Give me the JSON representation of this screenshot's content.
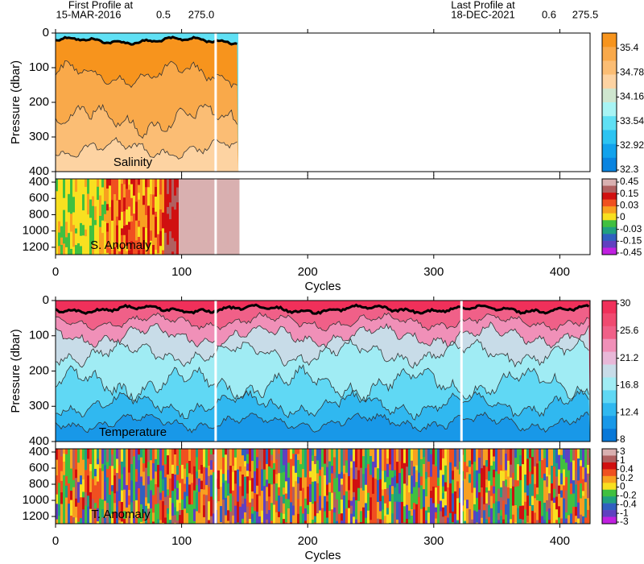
{
  "header": {
    "first_label": "First Profile at",
    "first_date": "15-MAR-2016",
    "first_lat": "0.5",
    "first_lon": "275.0",
    "last_label": "Last Profile at",
    "last_date": "18-DEC-2021",
    "last_lat": "0.6",
    "last_lon": "275.5"
  },
  "chart_data": [
    {
      "type": "contour",
      "label": "Salinity",
      "ylabel": "Pressure (dbar)",
      "xlim": [
        0,
        424
      ],
      "ylim": [
        0,
        400
      ],
      "y_inverted": true,
      "yticks": [
        0,
        100,
        200,
        300,
        400
      ],
      "colorbar": {
        "labels": [
          35.4,
          34.78,
          34.16,
          33.54,
          32.92,
          32.3
        ],
        "colors": [
          "#f7941d",
          "#f9a94a",
          "#fbbd74",
          "#fdd3a2",
          "#cfe6cf",
          "#a8f4f4",
          "#5fe0f4",
          "#2cc4f2",
          "#12a2ec",
          "#0a84e0"
        ]
      }
    },
    {
      "type": "anomaly",
      "label": "S. Anomaly",
      "xlabel": "Cycles",
      "xlim": [
        0,
        424
      ],
      "xticks": [
        0,
        100,
        200,
        300,
        400
      ],
      "ylim": [
        360,
        1290
      ],
      "y_inverted": true,
      "yticks": [
        400,
        600,
        800,
        1000,
        1200
      ],
      "colorbar": {
        "labels": [
          0.45,
          0.15,
          0.03,
          0,
          -0.03,
          -0.15,
          -0.45
        ],
        "colors": [
          "#d9b0b0",
          "#b06060",
          "#d01010",
          "#f05020",
          "#f8a020",
          "#f8e020",
          "#40c040",
          "#20a080",
          "#3060c0",
          "#6040c0",
          "#c020e0"
        ]
      }
    },
    {
      "type": "contour",
      "label": "Temperature",
      "ylabel": "Pressure (dbar)",
      "xlim": [
        0,
        424
      ],
      "ylim": [
        0,
        400
      ],
      "y_inverted": true,
      "yticks": [
        0,
        100,
        200,
        300,
        400
      ],
      "colorbar": {
        "labels": [
          30,
          25.6,
          21.2,
          16.8,
          12.4,
          8
        ],
        "colors": [
          "#f0305a",
          "#f04a70",
          "#f06088",
          "#f090b8",
          "#e8b8d8",
          "#c8dce8",
          "#a0ecf4",
          "#60d8f4",
          "#30b8f0",
          "#1898e8",
          "#0878d8"
        ]
      }
    },
    {
      "type": "anomaly",
      "label": "T. Anomaly",
      "xlabel": "Cycles",
      "xlim": [
        0,
        424
      ],
      "xticks": [
        0,
        100,
        200,
        300,
        400
      ],
      "ylim": [
        360,
        1290
      ],
      "y_inverted": true,
      "yticks": [
        400,
        600,
        800,
        1000,
        1200
      ],
      "colorbar": {
        "labels": [
          3,
          1,
          0.4,
          0.2,
          0,
          -0.2,
          -0.4,
          -1,
          -3
        ],
        "colors": [
          "#d9b0b0",
          "#b06060",
          "#d01010",
          "#f05020",
          "#f8a020",
          "#f8e020",
          "#40c040",
          "#20a080",
          "#3060c0",
          "#6040c0",
          "#c020e0"
        ]
      }
    }
  ]
}
